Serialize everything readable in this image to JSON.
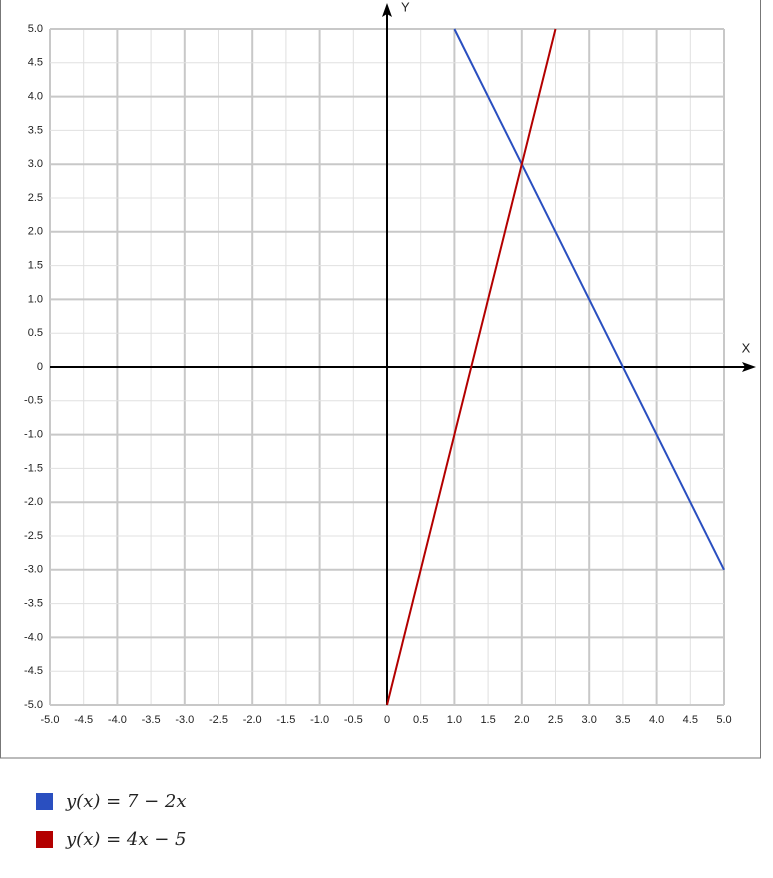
{
  "chart_data": {
    "type": "line",
    "x_label": "X",
    "y_label": "Y",
    "xlim": [
      -5,
      5
    ],
    "ylim": [
      -5,
      5
    ],
    "xticks": [
      {
        "value": -5,
        "label": "-5.0"
      },
      -4.5,
      {
        "value": -4,
        "label": "-4.0"
      },
      -3.5,
      {
        "value": -3,
        "label": "-3.0"
      },
      -2.5,
      {
        "value": -2,
        "label": "-2.0"
      },
      -1.5,
      {
        "value": -1,
        "label": "-1.0"
      },
      -0.5,
      0,
      0.5,
      {
        "value": 1,
        "label": "1.0"
      },
      1.5,
      {
        "value": 2,
        "label": "2.0"
      },
      2.5,
      {
        "value": 3,
        "label": "3.0"
      },
      3.5,
      {
        "value": 4,
        "label": "4.0"
      },
      4.5,
      {
        "value": 5,
        "label": "5.0"
      }
    ],
    "yticks": [
      {
        "value": -5,
        "label": "-5.0"
      },
      -4.5,
      {
        "value": -4,
        "label": "-4.0"
      },
      -3.5,
      {
        "value": -3,
        "label": "-3.0"
      },
      -2.5,
      {
        "value": -2,
        "label": "-2.0"
      },
      -1.5,
      {
        "value": -1,
        "label": "-1.0"
      },
      -0.5,
      0,
      0.5,
      {
        "value": 1,
        "label": "1.0"
      },
      1.5,
      {
        "value": 2,
        "label": "2.0"
      },
      2.5,
      {
        "value": 3,
        "label": "3.0"
      },
      3.5,
      {
        "value": 4,
        "label": "4.0"
      },
      4.5,
      {
        "value": 5,
        "label": "5.0"
      }
    ],
    "grid": true,
    "series": [
      {
        "name": "y(x) = 7 − 2x",
        "color": "#2a4fc0",
        "x": [
          1,
          5
        ],
        "values": [
          5,
          -3
        ]
      },
      {
        "name": "y(x) = 4x − 5",
        "color": "#b30000",
        "x": [
          0,
          2.5
        ],
        "values": [
          -5,
          5
        ]
      }
    ]
  }
}
